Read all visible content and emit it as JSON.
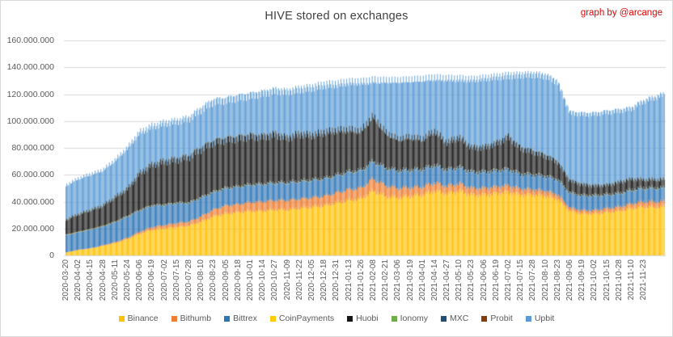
{
  "chart": {
    "title": "HIVE stored on exchanges",
    "credit": "graph by @arcange"
  },
  "chart_data": {
    "type": "bar",
    "stacked": true,
    "title": "HIVE stored on exchanges",
    "xlabel": "",
    "ylabel": "",
    "unit": "HIVE",
    "values_in": "millions of HIVE",
    "grid": true,
    "gridline_color": "#d9d9d9",
    "legend_position": "bottom",
    "ylim": [
      0,
      160000000
    ],
    "y_tick_step": 20000000,
    "y_tick_labels": [
      "0",
      "20.000.000",
      "40.000.000",
      "60.000.000",
      "80.000.000",
      "100.000.000",
      "120.000.000",
      "140.000.000",
      "160.000.000"
    ],
    "x_tick_labels": [
      "2020-03-20",
      "2020-04-02",
      "2020-04-15",
      "2020-04-28",
      "2020-05-11",
      "2020-05-24",
      "2020-06-06",
      "2020-06-19",
      "2020-07-02",
      "2020-07-15",
      "2020-07-28",
      "2020-08-10",
      "2020-08-23",
      "2020-09-05",
      "2020-09-18",
      "2020-10-01",
      "2020-10-14",
      "2020-10-27",
      "2020-11-09",
      "2020-11-22",
      "2020-12-05",
      "2020-12-18",
      "2020-12-31",
      "2021-01-13",
      "2021-01-26",
      "2021-02-08",
      "2021-02-21",
      "2021-03-06",
      "2021-03-19",
      "2021-04-01",
      "2021-04-14",
      "2021-04-27",
      "2021-05-10",
      "2021-05-23",
      "2021-06-06",
      "2021-06-19",
      "2021-07-02",
      "2021-07-15",
      "2021-07-28",
      "2021-08-10",
      "2021-08-23",
      "2021-09-06",
      "2021-09-19",
      "2021-10-02",
      "2021-10-15",
      "2021-10-28",
      "2021-11-10",
      "2021-11-23"
    ],
    "sampling_note": "Daily stacked bars; values below are sampled at each labeled tick (13-day spacing), last value is the unlabeled right edge of the chart",
    "days_per_tick": 13,
    "extra_days_after_last_tick": 22,
    "series": [
      {
        "name": "Binance",
        "color": "#ffc000",
        "values": [
          2,
          4,
          5,
          7,
          9,
          12,
          16,
          19,
          20,
          21,
          22,
          25,
          29,
          31,
          32,
          33,
          33,
          34,
          34,
          35,
          36,
          37,
          39,
          41,
          42,
          48,
          44,
          43,
          44,
          45,
          48,
          46,
          48,
          45,
          45,
          46,
          47,
          45,
          45,
          44,
          42,
          33,
          31,
          31,
          32,
          33,
          35,
          36,
          36
        ]
      },
      {
        "name": "Bithumb",
        "color": "#ed7d31",
        "values": [
          0.1,
          0.2,
          0.3,
          0.5,
          0.8,
          1,
          1.5,
          2,
          2.5,
          3,
          3,
          4,
          5,
          6,
          6,
          6.5,
          7,
          7,
          7,
          7,
          7,
          7,
          7.5,
          8,
          8,
          9,
          8,
          7,
          6.5,
          6,
          6,
          5.5,
          5.5,
          5,
          5,
          5,
          5,
          4.5,
          4,
          4,
          3.5,
          2.5,
          2.5,
          2.5,
          3,
          3,
          3.5,
          4,
          4
        ]
      },
      {
        "name": "Bittrex",
        "color": "#2e75b6",
        "values": [
          13,
          13,
          14,
          14,
          15,
          16,
          16,
          16,
          15,
          15,
          14,
          14,
          13,
          13,
          13,
          13,
          13,
          13,
          13,
          13,
          13,
          13,
          13,
          13,
          13,
          13,
          13,
          13,
          13,
          13,
          13,
          12,
          12,
          12,
          12,
          12,
          12,
          11,
          11,
          11,
          11,
          11,
          11,
          11,
          10,
          10,
          10,
          10,
          10
        ]
      },
      {
        "name": "CoinPayments",
        "color": "#ffcb05",
        "values": [
          0.3,
          0.3,
          0.3,
          0.3,
          0.3,
          0.3,
          0.3,
          0.3,
          0.3,
          0.3,
          0.3,
          0.3,
          0.3,
          0.3,
          0.3,
          0.3,
          0.3,
          0.3,
          0.3,
          0.3,
          0.3,
          0.3,
          0.3,
          0.3,
          0.3,
          0.3,
          0.3,
          0.3,
          0.3,
          0.3,
          0.3,
          0.3,
          0.3,
          0.3,
          0.3,
          0.3,
          0.3,
          0.3,
          0.3,
          0.3,
          0.3,
          0.3,
          0.3,
          0.3,
          0.3,
          0.3,
          0.3,
          0.3,
          0.3
        ]
      },
      {
        "name": "Huobi",
        "color": "#151515",
        "values": [
          11,
          13,
          14,
          15,
          18,
          20,
          27,
          30,
          32,
          32,
          34,
          36,
          37,
          36,
          36,
          36,
          35,
          36,
          33,
          35,
          33,
          34,
          33,
          31,
          29,
          33,
          26,
          23,
          24,
          22,
          25,
          20,
          22,
          18,
          18,
          20,
          24,
          19,
          17,
          15,
          13,
          9,
          8,
          7,
          7,
          8,
          8,
          6,
          6
        ]
      },
      {
        "name": "Ionomy",
        "color": "#70ad47",
        "values": [
          0.2,
          0.2,
          0.2,
          0.2,
          0.2,
          0.2,
          0.2,
          0.2,
          0.2,
          0.2,
          0.2,
          0.2,
          0.2,
          0.2,
          0.2,
          0.2,
          0.2,
          0.2,
          0.2,
          0.2,
          0.2,
          0.2,
          0.2,
          0.2,
          0.2,
          0.2,
          0.2,
          0.2,
          0.2,
          0.2,
          0.2,
          0.2,
          0.2,
          0.2,
          0.2,
          0.2,
          0.2,
          0.2,
          0.2,
          0.2,
          0.2,
          0.2,
          0.2,
          0.2,
          0.2,
          0.2,
          0.2,
          0.2,
          0.2
        ]
      },
      {
        "name": "MXC",
        "color": "#1f4e79",
        "values": [
          0.3,
          0.3,
          0.3,
          0.3,
          0.3,
          0.3,
          0.3,
          0.3,
          0.3,
          0.3,
          0.3,
          0.3,
          0.3,
          0.3,
          0.3,
          0.3,
          0.3,
          0.3,
          0.3,
          0.3,
          0.3,
          0.3,
          0.3,
          0.3,
          0.3,
          0.3,
          0.3,
          0.3,
          0.3,
          0.3,
          0.3,
          0.3,
          0.3,
          0.3,
          0.3,
          0.3,
          0.3,
          0.3,
          0.3,
          0.3,
          0.3,
          0.3,
          0.3,
          0.3,
          0.3,
          0.3,
          0.3,
          0.3,
          0.3
        ]
      },
      {
        "name": "Probit",
        "color": "#843c0c",
        "values": [
          0.1,
          0.1,
          0.1,
          0.1,
          0.1,
          0.1,
          0.1,
          0.1,
          0.1,
          0.1,
          0.1,
          0.1,
          0.1,
          0.1,
          0.1,
          0.1,
          0.1,
          0.1,
          0.1,
          0.1,
          0.1,
          0.1,
          0.1,
          0.1,
          0.1,
          0.1,
          0.1,
          0.1,
          0.1,
          0.1,
          0.1,
          0.1,
          0.1,
          0.1,
          0.1,
          0.1,
          0.1,
          0.1,
          0.1,
          0.1,
          0.1,
          0.1,
          0.1,
          0.1,
          0.1,
          0.1,
          0.1,
          0.1,
          0.1
        ]
      },
      {
        "name": "Upbit",
        "color": "#5b9bd5",
        "values": [
          25,
          26,
          26,
          26,
          27,
          30,
          30,
          28,
          28,
          28,
          28,
          29,
          30,
          29,
          30,
          30,
          32,
          32,
          34,
          33,
          35,
          35,
          34,
          35,
          36,
          26,
          38,
          43,
          42,
          44,
          39,
          47,
          43,
          50,
          51,
          49,
          45,
          54,
          57,
          59,
          59,
          50,
          52,
          53,
          54,
          53,
          52,
          58,
          63
        ]
      }
    ],
    "colors": {
      "title_text": "#404040",
      "axis_text": "#595959",
      "credit_text": "#e00000",
      "background": "#ffffff"
    }
  }
}
